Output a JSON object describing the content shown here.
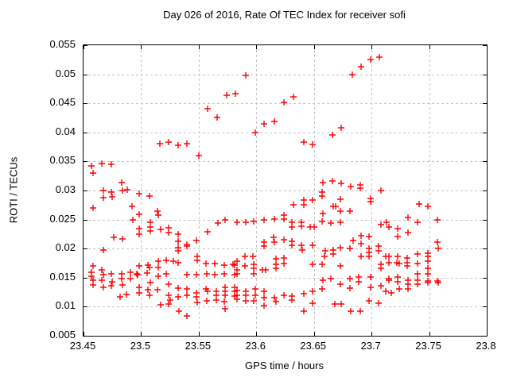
{
  "chart_data": {
    "type": "scatter",
    "title": "Day 026 of 2016, Rate Of TEC Index for receiver sofi",
    "xlabel": "GPS time / hours",
    "ylabel": "ROTI / TECUs",
    "xlim": [
      23.45,
      23.8
    ],
    "ylim": [
      0.005,
      0.055
    ],
    "xticks": [
      23.45,
      23.5,
      23.55,
      23.6,
      23.65,
      23.7,
      23.75,
      23.8
    ],
    "xtick_labels": [
      "23.45",
      "23.5",
      "23.55",
      "23.6",
      "23.65",
      "23.7",
      "23.75",
      "23.8"
    ],
    "yticks": [
      0.005,
      0.01,
      0.015,
      0.02,
      0.025,
      0.03,
      0.035,
      0.04,
      0.045,
      0.05,
      0.055
    ],
    "ytick_labels": [
      "0.005",
      "0.01",
      "0.015",
      "0.02",
      "0.025",
      "0.03",
      "0.035",
      "0.04",
      "0.045",
      "0.05",
      "0.055"
    ],
    "grid": true,
    "grid_color": "#c4c4c4",
    "frame_color": "#000000",
    "marker": "plus",
    "marker_color": "#ff0000",
    "series_name": "ROTI",
    "points": [
      [
        23.516,
        0.0381
      ],
      [
        23.524,
        0.0384
      ],
      [
        23.532,
        0.0378
      ],
      [
        23.54,
        0.0381
      ],
      [
        23.55,
        0.036
      ],
      [
        23.558,
        0.0441
      ],
      [
        23.566,
        0.0426
      ],
      [
        23.574,
        0.0464
      ],
      [
        23.582,
        0.0466
      ],
      [
        23.591,
        0.0498
      ],
      [
        23.599,
        0.04
      ],
      [
        23.607,
        0.0415
      ],
      [
        23.616,
        0.0419
      ],
      [
        23.624,
        0.0452
      ],
      [
        23.632,
        0.0461
      ],
      [
        23.683,
        0.05
      ],
      [
        23.691,
        0.0513
      ],
      [
        23.699,
        0.0525
      ],
      [
        23.707,
        0.0529
      ],
      [
        23.641,
        0.0383
      ],
      [
        23.649,
        0.0379
      ],
      [
        23.666,
        0.0395
      ],
      [
        23.674,
        0.0408
      ],
      [
        23.658,
        0.0314
      ],
      [
        23.666,
        0.0317
      ],
      [
        23.674,
        0.0312
      ],
      [
        23.682,
        0.0307
      ],
      [
        23.69,
        0.0309
      ],
      [
        23.69,
        0.0304
      ],
      [
        23.708,
        0.03
      ],
      [
        23.457,
        0.0343
      ],
      [
        23.458,
        0.033
      ],
      [
        23.466,
        0.0347
      ],
      [
        23.474,
        0.0345
      ],
      [
        23.458,
        0.027
      ],
      [
        23.467,
        0.03
      ],
      [
        23.467,
        0.0288
      ],
      [
        23.474,
        0.0297
      ],
      [
        23.475,
        0.0289
      ],
      [
        23.483,
        0.0313
      ],
      [
        23.484,
        0.03
      ],
      [
        23.488,
        0.0301
      ],
      [
        23.492,
        0.0273
      ],
      [
        23.493,
        0.025
      ],
      [
        23.476,
        0.0219
      ],
      [
        23.484,
        0.0217
      ],
      [
        23.467,
        0.0197
      ],
      [
        23.458,
        0.017
      ],
      [
        23.457,
        0.0159
      ],
      [
        23.457,
        0.0152
      ],
      [
        23.458,
        0.0146
      ],
      [
        23.458,
        0.0138
      ],
      [
        23.466,
        0.0163
      ],
      [
        23.467,
        0.0155
      ],
      [
        23.466,
        0.0146
      ],
      [
        23.467,
        0.0134
      ],
      [
        23.474,
        0.0156
      ],
      [
        23.475,
        0.0143
      ],
      [
        23.474,
        0.0136
      ],
      [
        23.483,
        0.0157
      ],
      [
        23.483,
        0.0148
      ],
      [
        23.484,
        0.0138
      ],
      [
        23.491,
        0.0159
      ],
      [
        23.491,
        0.0148
      ],
      [
        23.482,
        0.0117
      ],
      [
        23.487,
        0.0121
      ],
      [
        23.498,
        0.0295
      ],
      [
        23.507,
        0.0291
      ],
      [
        23.498,
        0.0259
      ],
      [
        23.514,
        0.0264
      ],
      [
        23.515,
        0.0258
      ],
      [
        23.508,
        0.0245
      ],
      [
        23.508,
        0.0237
      ],
      [
        23.508,
        0.023
      ],
      [
        23.498,
        0.0235
      ],
      [
        23.498,
        0.0225
      ],
      [
        23.517,
        0.0233
      ],
      [
        23.524,
        0.0236
      ],
      [
        23.524,
        0.0227
      ],
      [
        23.532,
        0.0225
      ],
      [
        23.532,
        0.0213
      ],
      [
        23.532,
        0.0201
      ],
      [
        23.532,
        0.0196
      ],
      [
        23.515,
        0.0178
      ],
      [
        23.522,
        0.018
      ],
      [
        23.528,
        0.0179
      ],
      [
        23.498,
        0.017
      ],
      [
        23.506,
        0.0171
      ],
      [
        23.507,
        0.0167
      ],
      [
        23.496,
        0.0157
      ],
      [
        23.497,
        0.0155
      ],
      [
        23.505,
        0.0158
      ],
      [
        23.515,
        0.0167
      ],
      [
        23.515,
        0.0153
      ],
      [
        23.522,
        0.0157
      ],
      [
        23.508,
        0.0142
      ],
      [
        23.498,
        0.0134
      ],
      [
        23.498,
        0.0124
      ],
      [
        23.506,
        0.0129
      ],
      [
        23.507,
        0.012
      ],
      [
        23.514,
        0.0129
      ],
      [
        23.524,
        0.0139
      ],
      [
        23.524,
        0.012
      ],
      [
        23.525,
        0.0112
      ],
      [
        23.524,
        0.0105
      ],
      [
        23.517,
        0.0103
      ],
      [
        23.532,
        0.0176
      ],
      [
        23.532,
        0.0132
      ],
      [
        23.532,
        0.0117
      ],
      [
        23.533,
        0.0093
      ],
      [
        23.567,
        0.0244
      ],
      [
        23.573,
        0.0249
      ],
      [
        23.558,
        0.0229
      ],
      [
        23.548,
        0.0214
      ],
      [
        23.54,
        0.0207
      ],
      [
        23.54,
        0.0204
      ],
      [
        23.549,
        0.0186
      ],
      [
        23.549,
        0.018
      ],
      [
        23.556,
        0.0174
      ],
      [
        23.564,
        0.0174
      ],
      [
        23.572,
        0.0172
      ],
      [
        23.58,
        0.0173
      ],
      [
        23.581,
        0.0171
      ],
      [
        23.54,
        0.0155
      ],
      [
        23.548,
        0.0155
      ],
      [
        23.557,
        0.0157
      ],
      [
        23.564,
        0.0155
      ],
      [
        23.572,
        0.0157
      ],
      [
        23.581,
        0.0155
      ],
      [
        23.54,
        0.013
      ],
      [
        23.54,
        0.012
      ],
      [
        23.548,
        0.0124
      ],
      [
        23.548,
        0.0117
      ],
      [
        23.549,
        0.0108
      ],
      [
        23.556,
        0.0131
      ],
      [
        23.558,
        0.0127
      ],
      [
        23.557,
        0.011
      ],
      [
        23.565,
        0.0127
      ],
      [
        23.565,
        0.012
      ],
      [
        23.565,
        0.0112
      ],
      [
        23.573,
        0.0134
      ],
      [
        23.573,
        0.0127
      ],
      [
        23.573,
        0.012
      ],
      [
        23.572,
        0.0109
      ],
      [
        23.573,
        0.0097
      ],
      [
        23.581,
        0.0134
      ],
      [
        23.581,
        0.0127
      ],
      [
        23.581,
        0.0118
      ],
      [
        23.54,
        0.0084
      ],
      [
        23.583,
        0.0245
      ],
      [
        23.591,
        0.0246
      ],
      [
        23.598,
        0.0247
      ],
      [
        23.607,
        0.025
      ],
      [
        23.616,
        0.0251
      ],
      [
        23.624,
        0.0258
      ],
      [
        23.624,
        0.0251
      ],
      [
        23.607,
        0.0211
      ],
      [
        23.607,
        0.0205
      ],
      [
        23.615,
        0.0219
      ],
      [
        23.616,
        0.0211
      ],
      [
        23.624,
        0.0215
      ],
      [
        23.59,
        0.0186
      ],
      [
        23.597,
        0.0186
      ],
      [
        23.583,
        0.0179
      ],
      [
        23.59,
        0.017
      ],
      [
        23.598,
        0.0173
      ],
      [
        23.598,
        0.0166
      ],
      [
        23.605,
        0.0163
      ],
      [
        23.608,
        0.0163
      ],
      [
        23.583,
        0.0163
      ],
      [
        23.583,
        0.0157
      ],
      [
        23.598,
        0.0157
      ],
      [
        23.617,
        0.0183
      ],
      [
        23.624,
        0.0184
      ],
      [
        23.617,
        0.0173
      ],
      [
        23.624,
        0.0174
      ],
      [
        23.617,
        0.0166
      ],
      [
        23.583,
        0.0128
      ],
      [
        23.583,
        0.012
      ],
      [
        23.583,
        0.0113
      ],
      [
        23.591,
        0.0127
      ],
      [
        23.591,
        0.012
      ],
      [
        23.591,
        0.011
      ],
      [
        23.599,
        0.013
      ],
      [
        23.599,
        0.012
      ],
      [
        23.598,
        0.011
      ],
      [
        23.607,
        0.0127
      ],
      [
        23.607,
        0.0116
      ],
      [
        23.607,
        0.0102
      ],
      [
        23.616,
        0.0116
      ],
      [
        23.617,
        0.0109
      ],
      [
        23.624,
        0.012
      ],
      [
        23.657,
        0.0297
      ],
      [
        23.657,
        0.029
      ],
      [
        23.649,
        0.0284
      ],
      [
        23.641,
        0.0284
      ],
      [
        23.641,
        0.0276
      ],
      [
        23.632,
        0.0276
      ],
      [
        23.667,
        0.0273
      ],
      [
        23.669,
        0.0273
      ],
      [
        23.658,
        0.026
      ],
      [
        23.657,
        0.0247
      ],
      [
        23.665,
        0.0244
      ],
      [
        23.631,
        0.0246
      ],
      [
        23.631,
        0.0237
      ],
      [
        23.639,
        0.0246
      ],
      [
        23.639,
        0.0238
      ],
      [
        23.647,
        0.0237
      ],
      [
        23.65,
        0.0237
      ],
      [
        23.631,
        0.0213
      ],
      [
        23.631,
        0.0206
      ],
      [
        23.639,
        0.0206
      ],
      [
        23.64,
        0.0198
      ],
      [
        23.649,
        0.0206
      ],
      [
        23.66,
        0.0196
      ],
      [
        23.667,
        0.0198
      ],
      [
        23.667,
        0.0191
      ],
      [
        23.659,
        0.0186
      ],
      [
        23.649,
        0.0173
      ],
      [
        23.657,
        0.0173
      ],
      [
        23.658,
        0.0145
      ],
      [
        23.665,
        0.0148
      ],
      [
        23.649,
        0.0127
      ],
      [
        23.657,
        0.0131
      ],
      [
        23.641,
        0.0122
      ],
      [
        23.631,
        0.0118
      ],
      [
        23.631,
        0.0111
      ],
      [
        23.649,
        0.0106
      ],
      [
        23.668,
        0.0104
      ],
      [
        23.641,
        0.0093
      ],
      [
        23.673,
        0.0285
      ],
      [
        23.673,
        0.0264
      ],
      [
        23.681,
        0.0264
      ],
      [
        23.699,
        0.0286
      ],
      [
        23.699,
        0.0281
      ],
      [
        23.673,
        0.0246
      ],
      [
        23.708,
        0.0241
      ],
      [
        23.713,
        0.0246
      ],
      [
        23.691,
        0.0222
      ],
      [
        23.698,
        0.0221
      ],
      [
        23.684,
        0.0214
      ],
      [
        23.691,
        0.0208
      ],
      [
        23.673,
        0.0201
      ],
      [
        23.681,
        0.02
      ],
      [
        23.698,
        0.02
      ],
      [
        23.698,
        0.0193
      ],
      [
        23.706,
        0.0205
      ],
      [
        23.706,
        0.0196
      ],
      [
        23.691,
        0.0186
      ],
      [
        23.698,
        0.0186
      ],
      [
        23.712,
        0.0187
      ],
      [
        23.673,
        0.017
      ],
      [
        23.708,
        0.0173
      ],
      [
        23.708,
        0.0166
      ],
      [
        23.681,
        0.0148
      ],
      [
        23.689,
        0.0151
      ],
      [
        23.689,
        0.0143
      ],
      [
        23.699,
        0.0151
      ],
      [
        23.673,
        0.0139
      ],
      [
        23.681,
        0.0132
      ],
      [
        23.699,
        0.0134
      ],
      [
        23.708,
        0.0136
      ],
      [
        23.712,
        0.0126
      ],
      [
        23.698,
        0.011
      ],
      [
        23.706,
        0.0106
      ],
      [
        23.674,
        0.0104
      ],
      [
        23.682,
        0.0092
      ],
      [
        23.69,
        0.0093
      ],
      [
        23.741,
        0.0277
      ],
      [
        23.749,
        0.0272
      ],
      [
        23.732,
        0.0253
      ],
      [
        23.74,
        0.0245
      ],
      [
        23.715,
        0.0237
      ],
      [
        23.723,
        0.0234
      ],
      [
        23.723,
        0.0221
      ],
      [
        23.732,
        0.0227
      ],
      [
        23.757,
        0.025
      ],
      [
        23.757,
        0.0211
      ],
      [
        23.758,
        0.02
      ],
      [
        23.715,
        0.0186
      ],
      [
        23.723,
        0.0186
      ],
      [
        23.731,
        0.0184
      ],
      [
        23.74,
        0.0191
      ],
      [
        23.749,
        0.0192
      ],
      [
        23.749,
        0.0186
      ],
      [
        23.715,
        0.0175
      ],
      [
        23.722,
        0.0176
      ],
      [
        23.724,
        0.0174
      ],
      [
        23.731,
        0.0176
      ],
      [
        23.731,
        0.017
      ],
      [
        23.74,
        0.0174
      ],
      [
        23.749,
        0.0178
      ],
      [
        23.749,
        0.0166
      ],
      [
        23.74,
        0.0157
      ],
      [
        23.749,
        0.0157
      ],
      [
        23.715,
        0.0148
      ],
      [
        23.723,
        0.0151
      ],
      [
        23.715,
        0.0145
      ],
      [
        23.723,
        0.0143
      ],
      [
        23.732,
        0.0146
      ],
      [
        23.732,
        0.0139
      ],
      [
        23.74,
        0.0146
      ],
      [
        23.74,
        0.0139
      ],
      [
        23.749,
        0.0144
      ],
      [
        23.749,
        0.0141
      ],
      [
        23.757,
        0.0144
      ],
      [
        23.758,
        0.0141
      ],
      [
        23.724,
        0.013
      ],
      [
        23.732,
        0.013
      ],
      [
        23.717,
        0.0124
      ]
    ]
  }
}
